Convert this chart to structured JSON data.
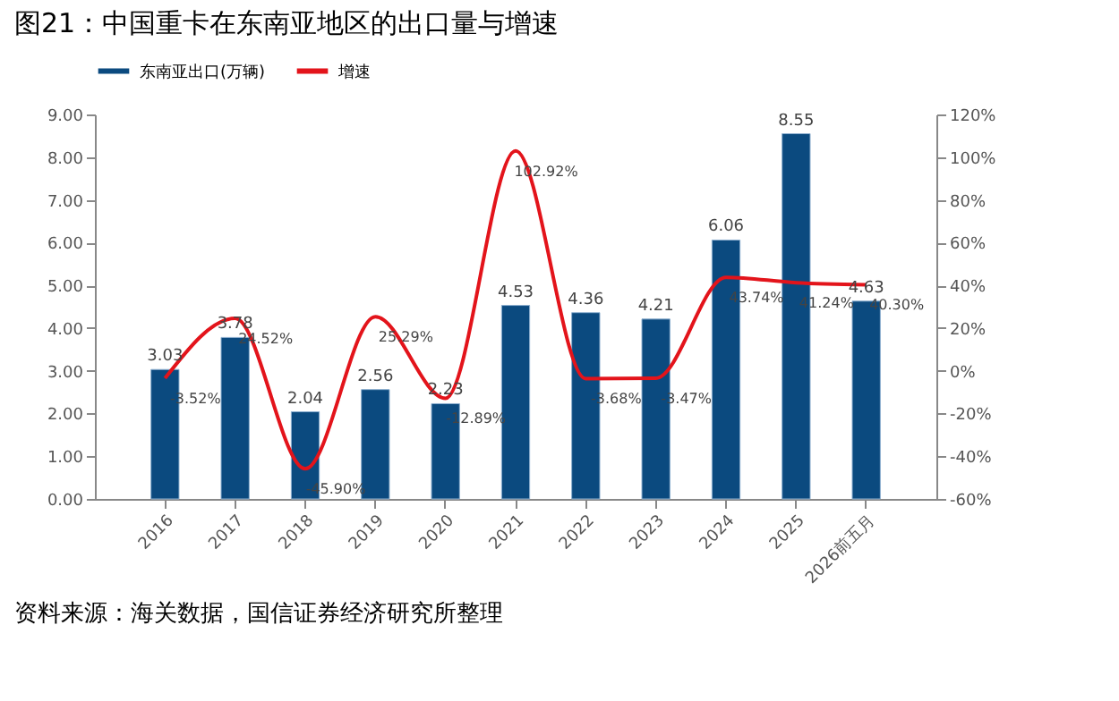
{
  "chart_data": {
    "type": "bar",
    "title": "图21：中国重卡在东南亚地区的出口量与增速",
    "categories": [
      "2016",
      "2017",
      "2018",
      "2019",
      "2020",
      "2021",
      "2022",
      "2023",
      "2024",
      "2025",
      "2026前五月"
    ],
    "series": [
      {
        "name": "东南亚出口(万辆)",
        "type": "bar",
        "color": "#0b4a7f",
        "values": [
          3.03,
          3.78,
          2.04,
          2.56,
          2.23,
          4.53,
          4.36,
          4.21,
          6.06,
          8.55,
          4.63
        ]
      },
      {
        "name": "增速",
        "type": "line",
        "axis": "y2",
        "color": "#e3141b",
        "values": [
          -3.52,
          24.52,
          -45.9,
          25.29,
          -12.89,
          102.92,
          -3.68,
          -3.47,
          43.74,
          41.24,
          40.3
        ],
        "value_labels": [
          "-3.52%",
          "24.52%",
          "-45.90%",
          "25.29%",
          "-12.89%",
          "102.92%",
          "-3.68%",
          "-3.47%",
          "43.74%",
          "41.24%",
          "40.30%"
        ]
      }
    ],
    "ylim": [
      0,
      9
    ],
    "yticks": [
      {
        "value": 0,
        "label": "0.00"
      },
      {
        "value": 1,
        "label": "1.00"
      },
      {
        "value": 2,
        "label": "2.00"
      },
      {
        "value": 3,
        "label": "3.00"
      },
      {
        "value": 4,
        "label": "4.00"
      },
      {
        "value": 5,
        "label": "5.00"
      },
      {
        "value": 6,
        "label": "6.00"
      },
      {
        "value": 7,
        "label": "7.00"
      },
      {
        "value": 8,
        "label": "8.00"
      },
      {
        "value": 9,
        "label": "9.00"
      }
    ],
    "y2lim": [
      -60,
      120
    ],
    "y2ticks": [
      {
        "value": -60,
        "label": "-60%"
      },
      {
        "value": -40,
        "label": "-40%"
      },
      {
        "value": -20,
        "label": "-20%"
      },
      {
        "value": 0,
        "label": "0%"
      },
      {
        "value": 20,
        "label": "20%"
      },
      {
        "value": 40,
        "label": "40%"
      },
      {
        "value": 60,
        "label": "60%"
      },
      {
        "value": 80,
        "label": "80%"
      },
      {
        "value": 100,
        "label": "100%"
      },
      {
        "value": 120,
        "label": "120%"
      }
    ],
    "data_labels": true,
    "grid": false,
    "legend": "top",
    "annotations": [
      "资料来源：海关数据，国信证券经济研究所整理"
    ]
  }
}
